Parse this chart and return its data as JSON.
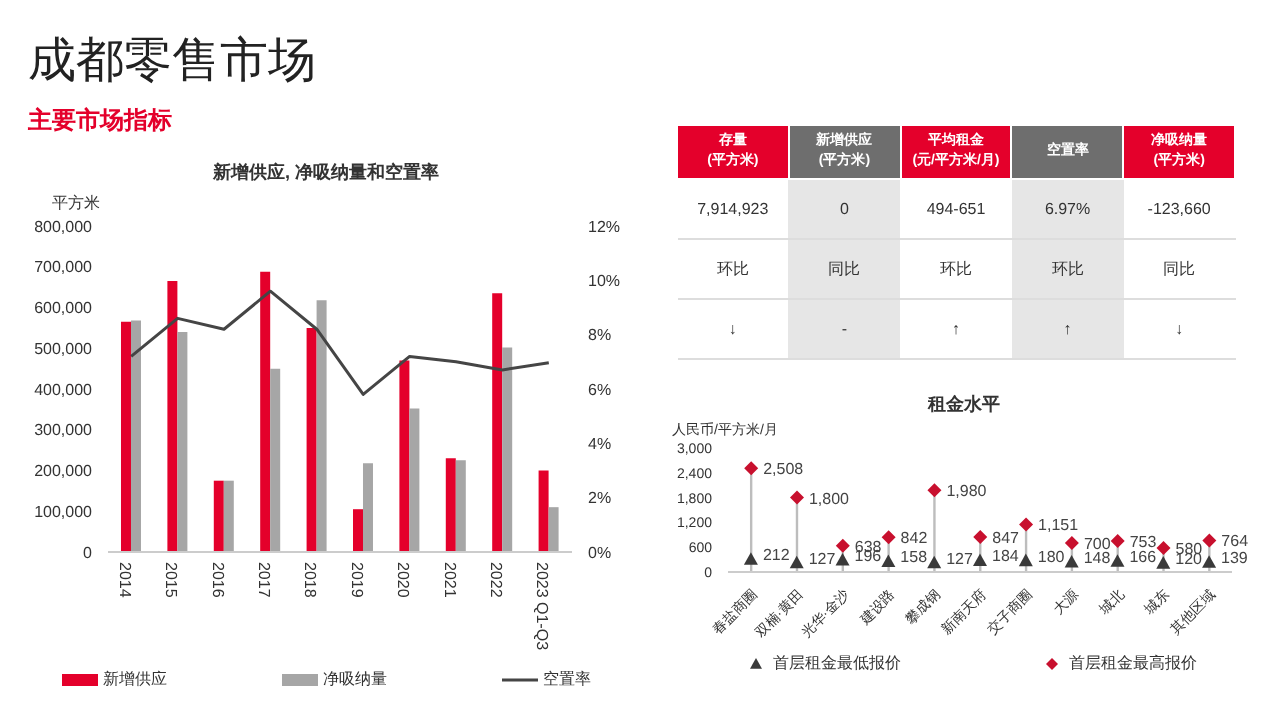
{
  "chart_data": [
    {
      "type": "other",
      "title": "成都零售市场",
      "subtitle": "主要市场指标"
    },
    {
      "type": "bar",
      "title": "新增供应, 净吸纳量和空置率",
      "ylabel": "平方米",
      "categories": [
        "2014",
        "2015",
        "2016",
        "2017",
        "2018",
        "2019",
        "2020",
        "2021",
        "2022",
        "2023 Q1-Q3"
      ],
      "series": [
        {
          "name": "新增供应",
          "type": "bar",
          "color": "#e4002b",
          "values": [
            565000,
            665000,
            175000,
            688000,
            550000,
            105000,
            470000,
            230000,
            635000,
            200000
          ]
        },
        {
          "name": "净吸纳量",
          "type": "bar",
          "color": "#a6a6a6",
          "values": [
            568000,
            540000,
            175000,
            450000,
            618000,
            218000,
            352000,
            225000,
            502000,
            110000
          ]
        },
        {
          "name": "空置率",
          "type": "line",
          "axis": "y2",
          "color": "#454545",
          "values": [
            7.2,
            8.6,
            8.2,
            9.6,
            8.2,
            5.8,
            7.2,
            7.0,
            6.7,
            6.97
          ]
        }
      ],
      "ylim": [
        0,
        800000
      ],
      "yticks": [
        {
          "value": 0,
          "label": "0"
        },
        {
          "value": 100000,
          "label": "100,000"
        },
        {
          "value": 200000,
          "label": "200,000"
        },
        {
          "value": 300000,
          "label": "300,000"
        },
        {
          "value": 400000,
          "label": "400,000"
        },
        {
          "value": 500000,
          "label": "500,000"
        },
        {
          "value": 600000,
          "label": "600,000"
        },
        {
          "value": 700000,
          "label": "700,000"
        },
        {
          "value": 800000,
          "label": "800,000"
        }
      ],
      "y2lim": [
        0,
        12
      ],
      "y2ticks": [
        {
          "value": 0,
          "label": "0%"
        },
        {
          "value": 2,
          "label": "2%"
        },
        {
          "value": 4,
          "label": "4%"
        },
        {
          "value": 6,
          "label": "6%"
        },
        {
          "value": 8,
          "label": "8%"
        },
        {
          "value": 10,
          "label": "10%"
        },
        {
          "value": 12,
          "label": "12%"
        }
      ],
      "grid": false,
      "legend": "bottom"
    },
    {
      "type": "other",
      "categories": [
        "存量\n(平方米)",
        "新增供应\n(平方米)",
        "平均租金\n(元/平方米/月)",
        "空置率",
        "净吸纳量\n(平方米)"
      ],
      "colors": [
        "#e4002b",
        "#6e6e6e",
        "#e4002b",
        "#6e6e6e",
        "#e4002b"
      ],
      "annotations": [
        "7,914,923",
        "0",
        "494-651",
        "6.97%",
        "-123,660",
        "环比",
        "同比",
        "环比",
        "环比",
        "同比",
        "↓",
        "-",
        "↑",
        "↑",
        "↓"
      ]
    },
    {
      "type": "lollipop",
      "title": "租金水平",
      "ylabel": "人民币/平方米/月",
      "categories": [
        "春盐商圈",
        "双楠·黄田",
        "光华·金沙",
        "建设路",
        "攀成钢",
        "新南天府",
        "交子商圈",
        "大源",
        "城北",
        "城东",
        "其他区域"
      ],
      "series": [
        {
          "name": "首层租金最低报价",
          "type": "scatter",
          "marker": "triangle",
          "color": "#3a3a3a",
          "values": [
            212,
            127,
            196,
            158,
            127,
            184,
            180,
            148,
            166,
            120,
            139
          ],
          "value_labels": [
            "212",
            "127",
            "196",
            "158",
            "127",
            "184",
            "180",
            "148",
            "166",
            "120",
            "139"
          ]
        },
        {
          "name": "首层租金最高报价",
          "type": "lollipop",
          "marker": "diamond",
          "color": "#c8102e",
          "values": [
            2508,
            1800,
            638,
            842,
            1980,
            847,
            1151,
            700,
            753,
            580,
            764
          ],
          "value_labels": [
            "2,508",
            "1,800",
            "638",
            "842",
            "1,980",
            "847",
            "1,151",
            "700",
            "753",
            "580",
            "764"
          ]
        }
      ],
      "ylim": [
        0,
        3000
      ],
      "yticks": [
        {
          "value": 0,
          "label": "0"
        },
        {
          "value": 600,
          "label": "600"
        },
        {
          "value": 1200,
          "label": "1,200"
        },
        {
          "value": 1800,
          "label": "1,800"
        },
        {
          "value": 2400,
          "label": "2,400"
        },
        {
          "value": 3000,
          "label": "3,000"
        }
      ],
      "grid": false,
      "legend": "bottom"
    }
  ]
}
